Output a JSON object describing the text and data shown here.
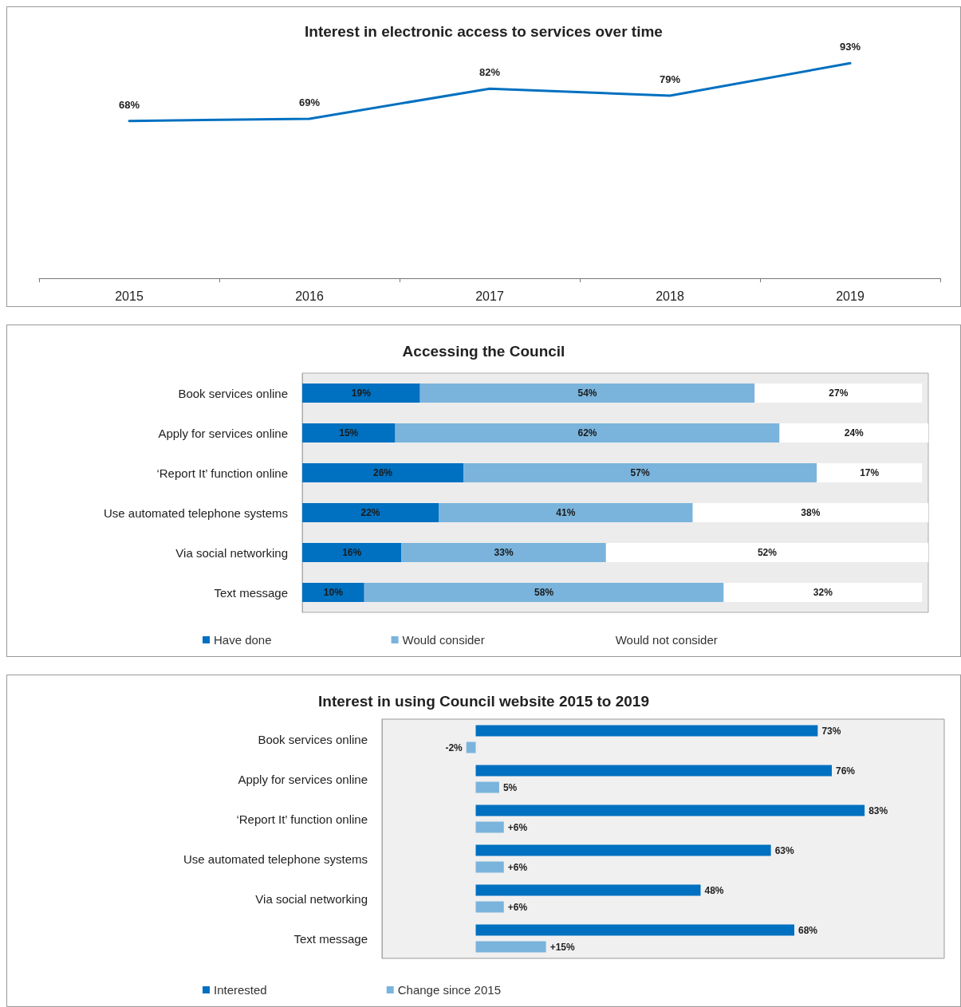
{
  "chart_data": [
    {
      "type": "line",
      "title": "Interest in electronic access to services over time",
      "categories": [
        "2015",
        "2016",
        "2017",
        "2018",
        "2019"
      ],
      "marker": "none",
      "series": [
        {
          "color": "#0070c0",
          "values": [
            68,
            69,
            82,
            79,
            93
          ],
          "value_labels": [
            "68%",
            "69%",
            "82%",
            "79%",
            "93%"
          ]
        }
      ]
    },
    {
      "type": "bar",
      "title": "Accessing the Council",
      "orientation": "horizontal",
      "stacked": true,
      "legend": "bottom",
      "categories": [
        "Book services online",
        "Apply for services online",
        "‘Report It’ function online",
        "Use automated telephone systems",
        "Via social networking",
        "Text message"
      ],
      "series": [
        {
          "name": "Have done",
          "color": "#0070c0",
          "values": [
            19,
            15,
            26,
            22,
            16,
            10
          ],
          "value_labels": [
            "19%",
            "15%",
            "26%",
            "22%",
            "16%",
            "10%"
          ]
        },
        {
          "name": "Would consider",
          "color": "#7ab4dc",
          "values": [
            54,
            62,
            57,
            41,
            33,
            58
          ],
          "value_labels": [
            "54%",
            "62%",
            "57%",
            "41%",
            "33%",
            "58%"
          ]
        },
        {
          "name": "Would not consider",
          "color": "#ffffff",
          "values": [
            27,
            24,
            17,
            38,
            52,
            32
          ],
          "value_labels": [
            "27%",
            "24%",
            "17%",
            "38%",
            "52%",
            "32%"
          ]
        }
      ]
    },
    {
      "type": "bar",
      "title": "Interest in using Council website 2015 to 2019",
      "orientation": "horizontal",
      "legend": "bottom",
      "categories": [
        "Book services online",
        "Apply for services online",
        "‘Report It’ function online",
        "Use automated telephone systems",
        "Via social networking",
        "Text message"
      ],
      "series": [
        {
          "name": "Interested",
          "color": "#0070c0",
          "values": [
            73,
            76,
            83,
            63,
            48,
            68
          ],
          "value_labels": [
            "73%",
            "76%",
            "83%",
            "63%",
            "48%",
            "68%"
          ]
        },
        {
          "name": "Change since 2015",
          "color": "#7ab4dc",
          "values": [
            -2,
            5,
            6,
            6,
            6,
            15
          ],
          "value_labels": [
            "-2%",
            "5%",
            "+6%",
            "+6%",
            "+6%",
            "+15%"
          ]
        }
      ]
    }
  ]
}
